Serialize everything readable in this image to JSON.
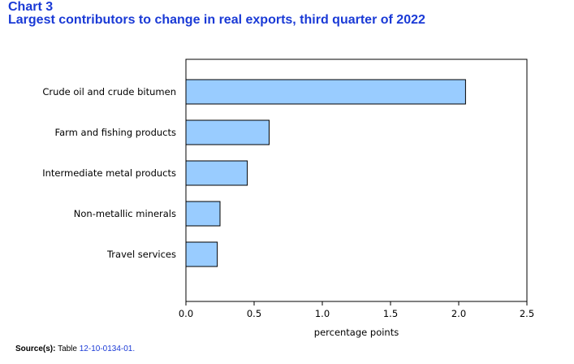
{
  "header": {
    "chart_number": "Chart 3",
    "title": "Largest contributors to change in real exports, third quarter of 2022"
  },
  "source": {
    "label": "Source(s):",
    "text": "Table",
    "table_id": "12-10-0134-01."
  },
  "colors": {
    "bar_fill": "#99ccff",
    "bar_stroke": "#000000",
    "title_color": "#1a3ad6"
  },
  "chart_data": {
    "type": "bar",
    "orientation": "horizontal",
    "categories": [
      "Crude oil and crude bitumen",
      "Farm and fishing products",
      "Intermediate metal products",
      "Non-metallic minerals",
      "Travel services"
    ],
    "values": [
      2.05,
      0.61,
      0.45,
      0.25,
      0.23
    ],
    "xlabel": "percentage points",
    "ylabel": "",
    "xlim": [
      0,
      2.5
    ],
    "ticks": [
      "0.0",
      "0.5",
      "1.0",
      "1.5",
      "2.0",
      "2.5"
    ],
    "grid": false,
    "legend": "none"
  }
}
